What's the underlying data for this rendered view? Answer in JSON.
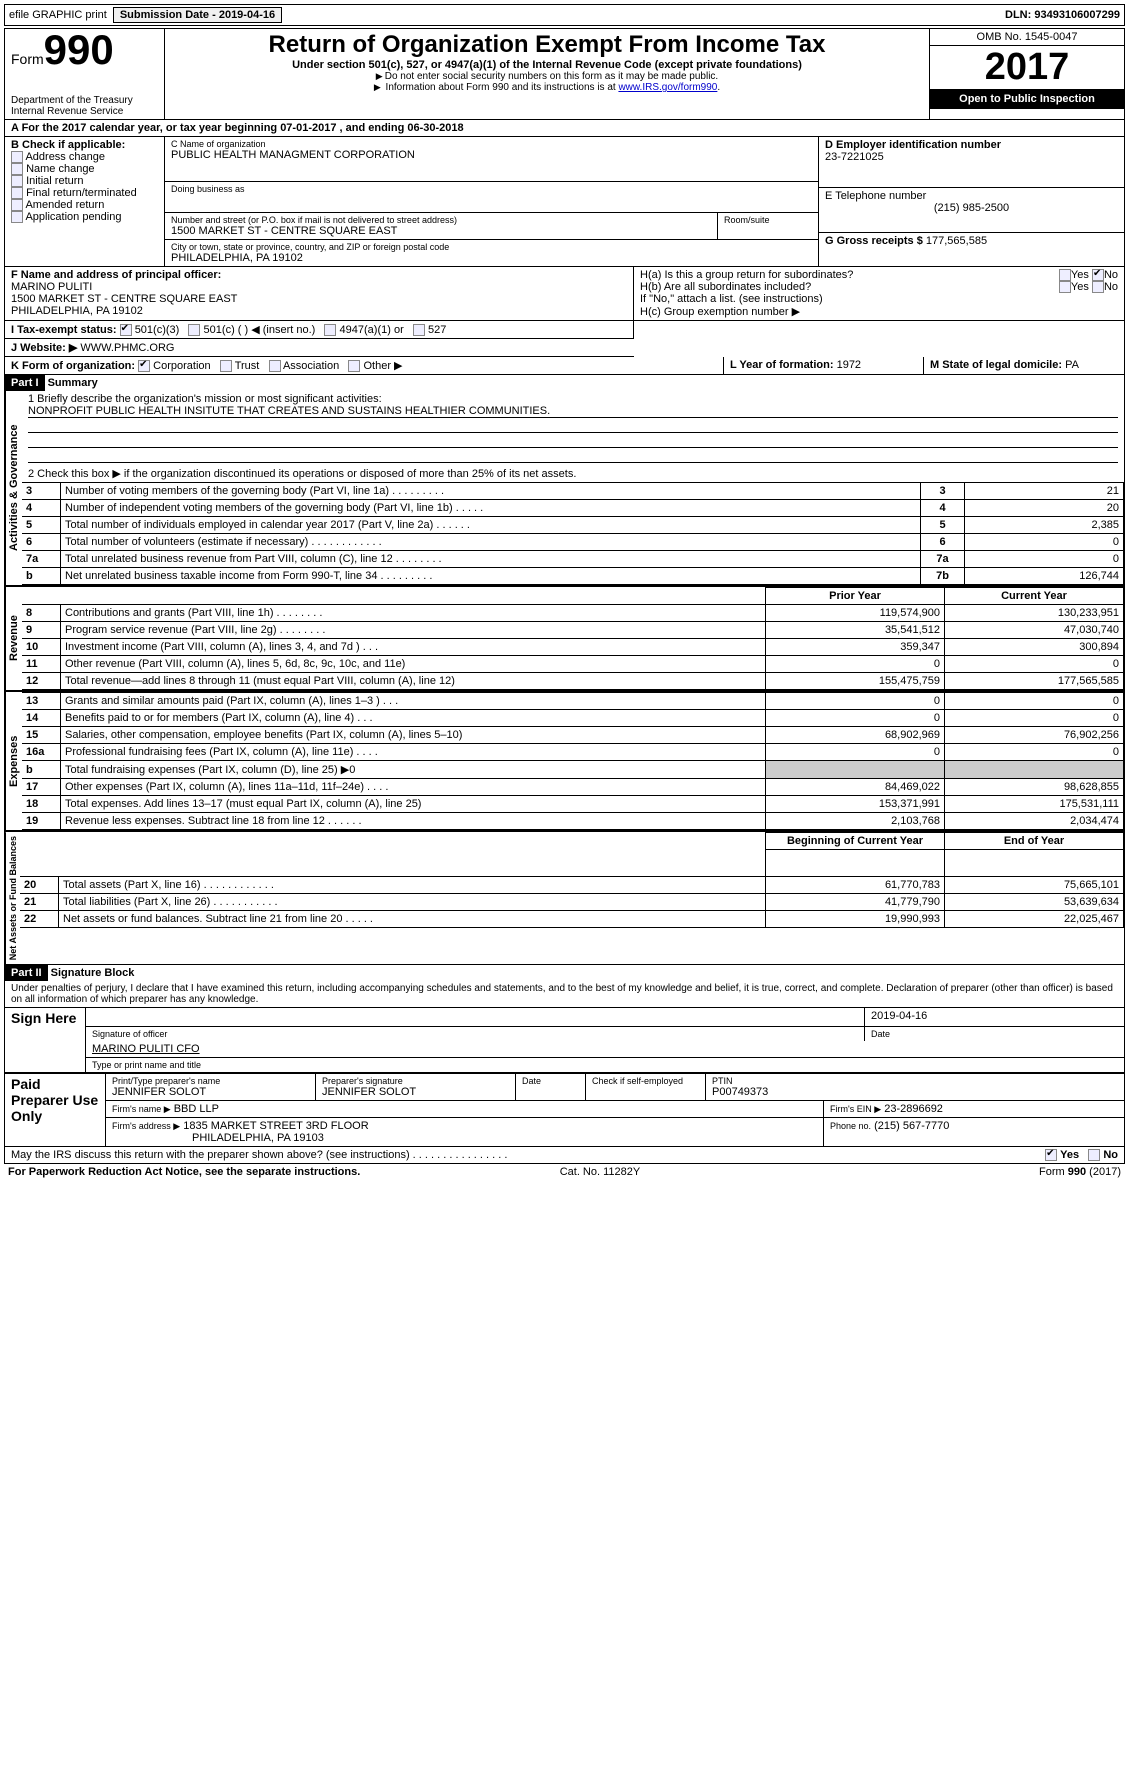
{
  "header_bar": {
    "efile_label": "efile GRAPHIC print",
    "submission_label": "Submission Date - 2019-04-16",
    "dln_label": "DLN: 93493106007299"
  },
  "top": {
    "form_label": "Form",
    "form_number": "990",
    "dept1": "Department of the Treasury",
    "dept2": "Internal Revenue Service",
    "title": "Return of Organization Exempt From Income Tax",
    "sub1": "Under section 501(c), 527, or 4947(a)(1) of the Internal Revenue Code (except private foundations)",
    "sub2": "Do not enter social security numbers on this form as it may be made public.",
    "sub3_a": "Information about Form 990 and its instructions is at ",
    "sub3_link": "www.IRS.gov/form990",
    "sub3_b": ".",
    "omb": "OMB No. 1545-0047",
    "year": "2017",
    "open": "Open to Public Inspection"
  },
  "blockA": {
    "label": "A  For the 2017 calendar year, or tax year beginning 07-01-2017   , and ending 06-30-2018"
  },
  "blockB": {
    "label": "B Check if applicable:",
    "items": [
      "Address change",
      "Name change",
      "Initial return",
      "Final return/terminated",
      "Amended return",
      "Application pending"
    ]
  },
  "blockC": {
    "name_lbl": "C Name of organization",
    "name_val": "PUBLIC HEALTH MANAGMENT CORPORATION",
    "dba_lbl": "Doing business as",
    "addr_lbl": "Number and street (or P.O. box if mail is not delivered to street address)",
    "room_lbl": "Room/suite",
    "addr_val": "1500 MARKET ST - CENTRE SQUARE EAST",
    "city_lbl": "City or town, state or province, country, and ZIP or foreign postal code",
    "city_val": "PHILADELPHIA, PA  19102"
  },
  "blockD": {
    "lbl": "D Employer identification number",
    "val": "23-7221025"
  },
  "blockE": {
    "lbl": "E Telephone number",
    "val": "(215) 985-2500"
  },
  "blockG": {
    "lbl": "G Gross receipts $",
    "val": "177,565,585"
  },
  "blockF": {
    "lbl": "F  Name and address of principal officer:",
    "name": "MARINO PULITI",
    "addr1": "1500 MARKET ST - CENTRE SQUARE EAST",
    "addr2": "PHILADELPHIA, PA  19102"
  },
  "blockH": {
    "a": "H(a)  Is this a group return for subordinates?",
    "b": "H(b)  Are all subordinates included?",
    "bnote": "If \"No,\" attach a list. (see instructions)",
    "c": "H(c)  Group exemption number ▶"
  },
  "blockI": {
    "lbl": "I  Tax-exempt status:",
    "o1": "501(c)(3)",
    "o2": "501(c) (   ) ◀ (insert no.)",
    "o3": "4947(a)(1) or",
    "o4": "527"
  },
  "blockJ": {
    "lbl": "J  Website: ▶",
    "val": "WWW.PHMC.ORG"
  },
  "blockK": {
    "lbl": "K Form of organization:",
    "o": [
      "Corporation",
      "Trust",
      "Association",
      "Other ▶"
    ]
  },
  "blockL": {
    "lbl": "L Year of formation:",
    "val": "1972"
  },
  "blockM": {
    "lbl": "M State of legal domicile:",
    "val": "PA"
  },
  "partI": {
    "hdr": "Part I",
    "title": "Summary",
    "side1": "Activities & Governance",
    "side2": "Revenue",
    "side3": "Expenses",
    "side4": "Net Assets or Fund Balances",
    "line1_lbl": "1  Briefly describe the organization's mission or most significant activities:",
    "line1_val": "NONPROFIT PUBLIC HEALTH INSITUTE THAT CREATES AND SUSTAINS HEALTHIER COMMUNITIES.",
    "line2": "2  Check this box ▶       if the organization discontinued its operations or disposed of more than 25% of its net assets.",
    "rows_gov": [
      {
        "n": "3",
        "t": "Number of voting members of the governing body (Part VI, line 1a)   .   .   .   .   .   .   .   .   .",
        "v": "21"
      },
      {
        "n": "4",
        "t": "Number of independent voting members of the governing body (Part VI, line 1b)   .   .   .   .   .",
        "v": "20"
      },
      {
        "n": "5",
        "t": "Total number of individuals employed in calendar year 2017 (Part V, line 2a)   .   .   .   .   .   .",
        "v": "2,385"
      },
      {
        "n": "6",
        "t": "Total number of volunteers (estimate if necessary)   .   .   .   .   .   .   .   .   .   .   .   .",
        "v": "0"
      },
      {
        "n": "7a",
        "t": "Total unrelated business revenue from Part VIII, column (C), line 12   .   .   .   .   .   .   .   .",
        "v": "0"
      },
      {
        "n": "b",
        "t": "Net unrelated business taxable income from Form 990-T, line 34   .   .   .   .   .   .   .   .   .",
        "k": "7b",
        "v": "126,744"
      }
    ],
    "col_prior": "Prior Year",
    "col_curr": "Current Year",
    "rows_rev": [
      {
        "n": "8",
        "t": "Contributions and grants (Part VIII, line 1h)   .   .   .   .   .   .   .   .",
        "p": "119,574,900",
        "c": "130,233,951"
      },
      {
        "n": "9",
        "t": "Program service revenue (Part VIII, line 2g)   .   .   .   .   .   .   .   .",
        "p": "35,541,512",
        "c": "47,030,740"
      },
      {
        "n": "10",
        "t": "Investment income (Part VIII, column (A), lines 3, 4, and 7d )   .   .   .",
        "p": "359,347",
        "c": "300,894"
      },
      {
        "n": "11",
        "t": "Other revenue (Part VIII, column (A), lines 5, 6d, 8c, 9c, 10c, and 11e)",
        "p": "0",
        "c": "0"
      },
      {
        "n": "12",
        "t": "Total revenue—add lines 8 through 11 (must equal Part VIII, column (A), line 12)",
        "p": "155,475,759",
        "c": "177,565,585"
      }
    ],
    "rows_exp": [
      {
        "n": "13",
        "t": "Grants and similar amounts paid (Part IX, column (A), lines 1–3 )   .   .   .",
        "p": "0",
        "c": "0"
      },
      {
        "n": "14",
        "t": "Benefits paid to or for members (Part IX, column (A), line 4)   .   .   .",
        "p": "0",
        "c": "0"
      },
      {
        "n": "15",
        "t": "Salaries, other compensation, employee benefits (Part IX, column (A), lines 5–10)",
        "p": "68,902,969",
        "c": "76,902,256"
      },
      {
        "n": "16a",
        "t": "Professional fundraising fees (Part IX, column (A), line 11e)   .   .   .   .",
        "p": "0",
        "c": "0"
      },
      {
        "n": "b",
        "t": "Total fundraising expenses (Part IX, column (D), line 25) ▶0",
        "p": "",
        "c": "",
        "shade": true
      },
      {
        "n": "17",
        "t": "Other expenses (Part IX, column (A), lines 11a–11d, 11f–24e)   .   .   .   .",
        "p": "84,469,022",
        "c": "98,628,855"
      },
      {
        "n": "18",
        "t": "Total expenses. Add lines 13–17 (must equal Part IX, column (A), line 25)",
        "p": "153,371,991",
        "c": "175,531,111"
      },
      {
        "n": "19",
        "t": "Revenue less expenses. Subtract line 18 from line 12   .   .   .   .   .   .",
        "p": "2,103,768",
        "c": "2,034,474"
      }
    ],
    "col_beg": "Beginning of Current Year",
    "col_end": "End of Year",
    "rows_net": [
      {
        "n": "20",
        "t": "Total assets (Part X, line 16)   .   .   .   .   .   .   .   .   .   .   .   .",
        "p": "61,770,783",
        "c": "75,665,101"
      },
      {
        "n": "21",
        "t": "Total liabilities (Part X, line 26)   .   .   .   .   .   .   .   .   .   .   .",
        "p": "41,779,790",
        "c": "53,639,634"
      },
      {
        "n": "22",
        "t": "Net assets or fund balances. Subtract line 21 from line 20  .   .   .   .   .",
        "p": "19,990,993",
        "c": "22,025,467"
      }
    ]
  },
  "partII": {
    "hdr": "Part II",
    "title": "Signature Block",
    "perjury": "Under penalties of perjury, I declare that I have examined this return, including accompanying schedules and statements, and to the best of my knowledge and belief, it is true, correct, and complete. Declaration of preparer (other than officer) is based on all information of which preparer has any knowledge.",
    "sign_here": "Sign Here",
    "sig_lbl": "Signature of officer",
    "date_lbl": "Date",
    "date_val": "2019-04-16",
    "name_val": "MARINO PULITI CFO",
    "name_lbl": "Type or print name and title",
    "paid": "Paid Preparer Use Only",
    "prep_name_lbl": "Print/Type preparer's name",
    "prep_name": "JENNIFER SOLOT",
    "prep_sig_lbl": "Preparer's signature",
    "prep_sig": "JENNIFER SOLOT",
    "prep_date_lbl": "Date",
    "prep_check": "Check        if self-employed",
    "ptin_lbl": "PTIN",
    "ptin": "P00749373",
    "firm_name_lbl": "Firm's name    ▶",
    "firm_name": "BBD LLP",
    "firm_ein_lbl": "Firm's EIN ▶",
    "firm_ein": "23-2896692",
    "firm_addr_lbl": "Firm's address ▶",
    "firm_addr1": "1835 MARKET STREET 3RD FLOOR",
    "firm_addr2": "PHILADELPHIA, PA  19103",
    "phone_lbl": "Phone no.",
    "phone": "(215) 567-7770",
    "discuss": "May the IRS discuss this return with the preparer shown above? (see instructions)   .   .   .   .   .   .   .   .   .   .   .   .   .   .   .   ."
  },
  "footer": {
    "left": "For Paperwork Reduction Act Notice, see the separate instructions.",
    "mid": "Cat. No. 11282Y",
    "right": "Form 990 (2017)"
  },
  "labels": {
    "yes": "Yes",
    "no": "No"
  }
}
